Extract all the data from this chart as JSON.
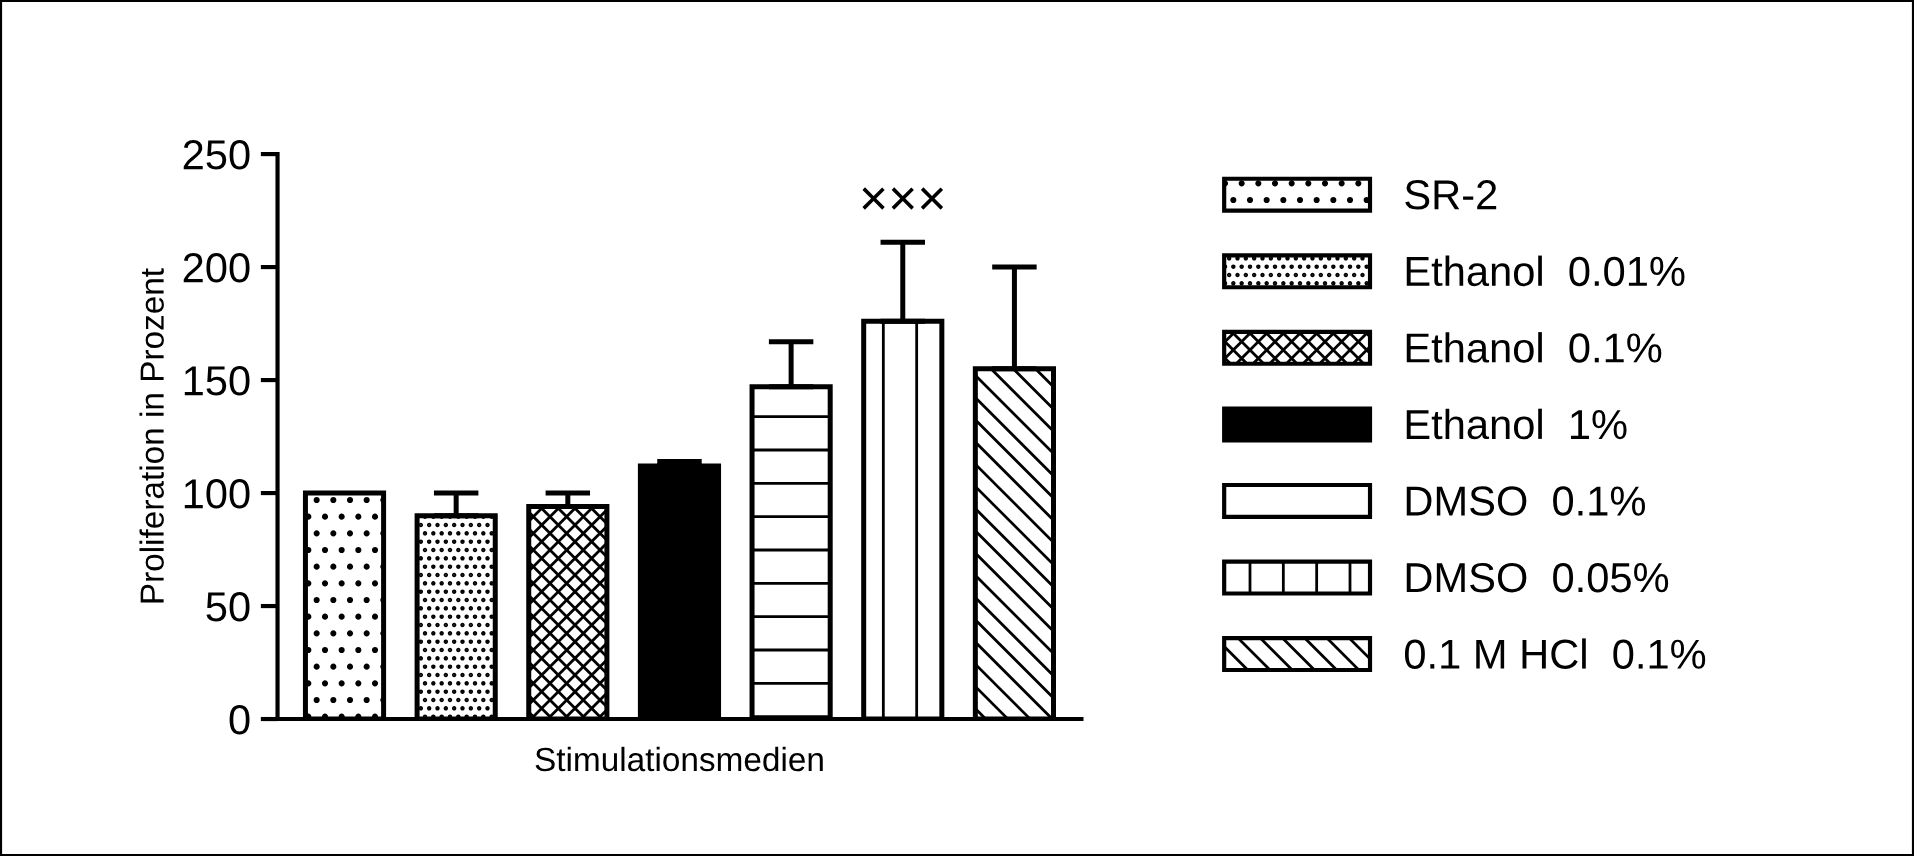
{
  "chart_data": {
    "type": "bar",
    "xlabel": "Stimulationsmedien",
    "ylabel": "Proliferation in Prozent",
    "categories": [
      null
    ],
    "series": [
      {
        "name": "SR-2",
        "color": "#000000",
        "values": [
          100
        ]
      },
      {
        "name": "Ethanol  0.01%",
        "color": "#000000",
        "values": [
          90
        ],
        "errors": [
          [
            90,
            100
          ]
        ]
      },
      {
        "name": "Ethanol  0.1%",
        "color": "#000000",
        "values": [
          94
        ],
        "errors": [
          [
            94,
            100
          ]
        ]
      },
      {
        "name": "Ethanol  1%",
        "color": "#000000",
        "values": [
          112
        ],
        "errors": [
          [
            112,
            114
          ]
        ]
      },
      {
        "name": "DMSO  0.1%",
        "color": "#000000",
        "values": [
          147
        ],
        "errors": [
          [
            147,
            167
          ]
        ]
      },
      {
        "name": "DMSO  0.05%",
        "color": "#000000",
        "values": [
          176
        ],
        "errors": [
          [
            176,
            211
          ]
        ]
      },
      {
        "name": "0.1 M HCl  0.1%",
        "color": "#000000",
        "values": [
          155
        ],
        "errors": [
          [
            155,
            200
          ]
        ]
      }
    ],
    "annotations": [
      {
        "text": "×××",
        "y": 211
      }
    ],
    "ylim": [
      0,
      250
    ],
    "yticks": [
      0,
      50,
      100,
      150,
      200,
      250
    ],
    "grid": false,
    "legend": "right"
  }
}
